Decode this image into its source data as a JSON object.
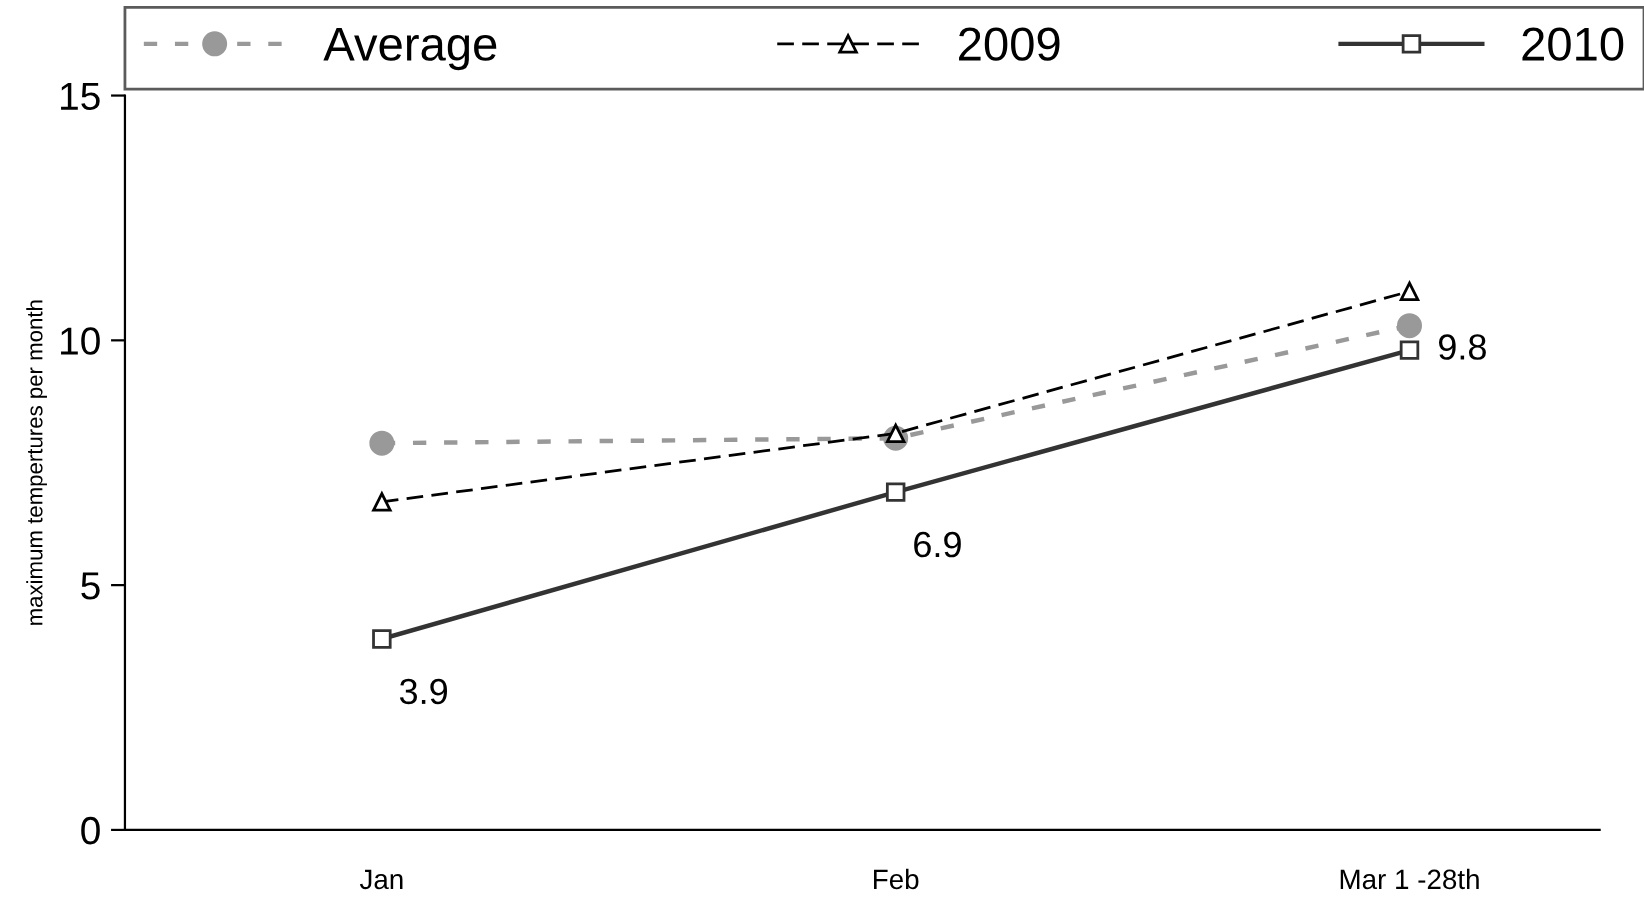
{
  "chart_data": {
    "type": "line",
    "ylabel": "maximum tempertures per month",
    "categories": [
      "Jan",
      "Feb",
      "Mar 1 -28th"
    ],
    "series": [
      {
        "name": "Average",
        "color": "#999999",
        "values": [
          7.9,
          8.0,
          10.3
        ],
        "marker": "circle",
        "line_style": "dotted"
      },
      {
        "name": "2009",
        "color": "#000000",
        "values": [
          6.7,
          8.1,
          11.0
        ],
        "marker": "triangle",
        "line_style": "dashed"
      },
      {
        "name": "2010",
        "color": "#333333",
        "values": [
          3.9,
          6.9,
          9.8
        ],
        "marker": "square",
        "line_style": "solid",
        "value_labels": [
          "3.9",
          "6.9",
          "9.8"
        ]
      }
    ],
    "ylim": [
      0,
      15
    ],
    "yticks": [
      0,
      5,
      10,
      15
    ],
    "grid": false,
    "legend": "top"
  }
}
